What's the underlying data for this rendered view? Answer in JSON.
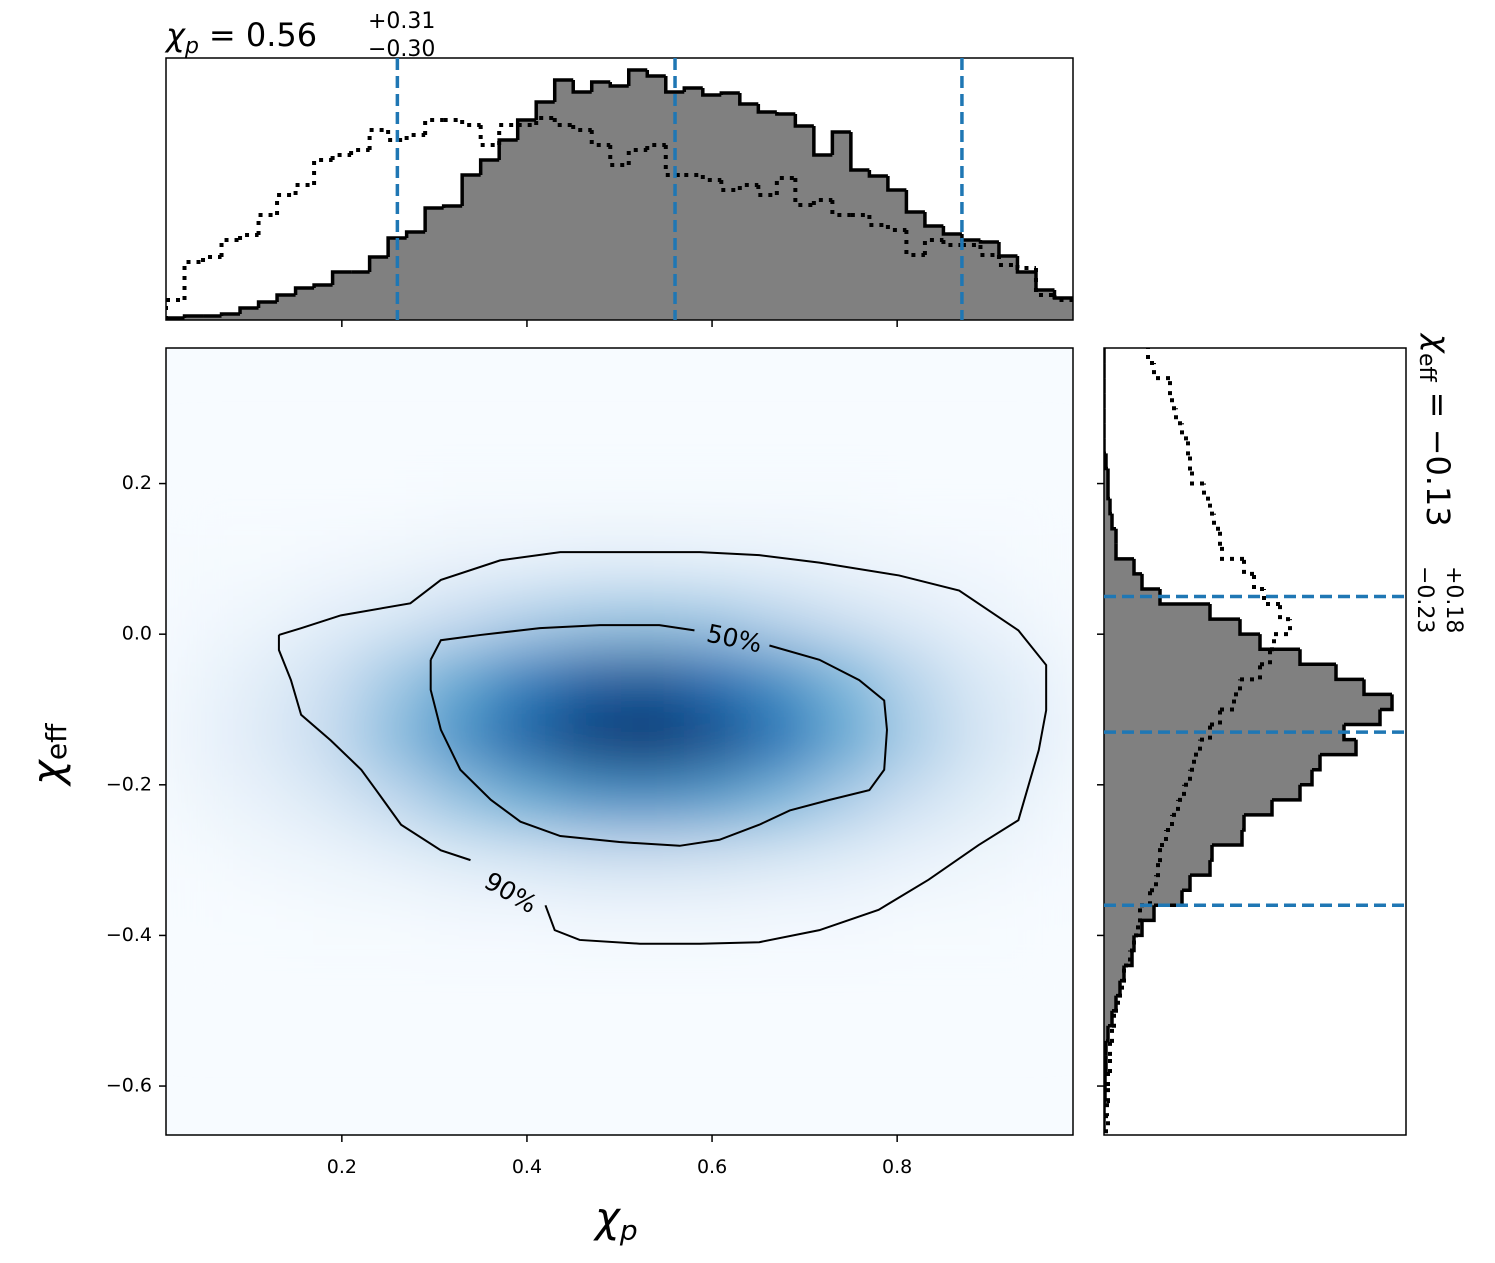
{
  "chart_data": [
    {
      "type": "histogram",
      "title": {
        "symbol": "χ",
        "sub": "p",
        "value": "= 0.56",
        "upper": "+0.31",
        "lower": "−0.30"
      },
      "bins": [
        0.01,
        0.03,
        0.05,
        0.07,
        0.09,
        0.11,
        0.13,
        0.15,
        0.17,
        0.19,
        0.21,
        0.23,
        0.25,
        0.27,
        0.29,
        0.31,
        0.33,
        0.35,
        0.37,
        0.39,
        0.41,
        0.43,
        0.45,
        0.47,
        0.49,
        0.51,
        0.53,
        0.55,
        0.57,
        0.59,
        0.61,
        0.63,
        0.65,
        0.67,
        0.69,
        0.71,
        0.73,
        0.75,
        0.77,
        0.79,
        0.81,
        0.83,
        0.85,
        0.87,
        0.89,
        0.91,
        0.93,
        0.95,
        0.97,
        0.99
      ],
      "series": [
        {
          "style": "filled",
          "color": "#808080",
          "edgecolor": "#000000",
          "values": [
            2,
            4,
            4,
            6,
            12,
            18,
            25,
            32,
            35,
            48,
            48,
            63,
            82,
            88,
            112,
            114,
            145,
            160,
            180,
            200,
            218,
            240,
            228,
            238,
            234,
            250,
            244,
            228,
            232,
            225,
            227,
            216,
            208,
            206,
            194,
            165,
            188,
            150,
            144,
            130,
            108,
            94,
            86,
            80,
            78,
            64,
            48,
            30,
            22
          ]
        },
        {
          "style": "dotted",
          "color": "#000000",
          "values": [
            20,
            58,
            63,
            80,
            85,
            105,
            125,
            135,
            160,
            165,
            170,
            190,
            180,
            185,
            200,
            200,
            195,
            175,
            195,
            195,
            202,
            195,
            190,
            175,
            155,
            170,
            175,
            145,
            145,
            140,
            130,
            135,
            125,
            142,
            115,
            120,
            105,
            105,
            95,
            90,
            65,
            80,
            75,
            75,
            65,
            55,
            52,
            25,
            20
          ]
        }
      ],
      "xlim": [
        0.01,
        0.99
      ],
      "ylim": [
        0,
        262
      ],
      "xticks": [
        0.2,
        0.4,
        0.6,
        0.8
      ],
      "quantiles": [
        0.26,
        0.56,
        0.87
      ],
      "quantile_color": "#1f77b4"
    },
    {
      "type": "heatmap",
      "xlabel": {
        "symbol": "χ",
        "sub": "p"
      },
      "ylabel": {
        "symbol": "χ",
        "sub": "eff"
      },
      "xlim": [
        0.01,
        0.99
      ],
      "ylim": [
        -0.665,
        0.38
      ],
      "xticks": [
        0.2,
        0.4,
        0.6,
        0.8
      ],
      "yticks": [
        0.2,
        {
          "value": 0,
          "label": "0.0"
        },
        {
          "value": -0.2,
          "label": "−0.2"
        },
        {
          "value": -0.4,
          "label": "−0.4"
        },
        {
          "value": -0.6,
          "label": "−0.6"
        }
      ],
      "cmap": [
        "#f7fbff",
        "#c6dbef",
        "#6baed6",
        "#2171b5",
        "#08306b"
      ],
      "x_edges": [
        0.01,
        0.08,
        0.15,
        0.22,
        0.29,
        0.36,
        0.43,
        0.5,
        0.57,
        0.64,
        0.71,
        0.78,
        0.85,
        0.92,
        0.99
      ],
      "y_edges": [
        -0.5,
        -0.42,
        -0.34,
        -0.26,
        -0.18,
        -0.1,
        -0.02,
        0.06,
        0.14,
        0.22
      ],
      "values": [
        [
          0,
          0,
          0,
          0,
          0,
          0,
          0,
          0,
          0,
          0,
          0,
          0,
          0,
          0
        ],
        [
          0,
          0,
          0.01,
          0.01,
          0.02,
          0.02,
          0.03,
          0.03,
          0.03,
          0.02,
          0.02,
          0.01,
          0.01,
          0
        ],
        [
          0.01,
          0.03,
          0.05,
          0.08,
          0.12,
          0.16,
          0.19,
          0.2,
          0.18,
          0.15,
          0.11,
          0.07,
          0.04,
          0.02
        ],
        [
          0.04,
          0.08,
          0.15,
          0.26,
          0.38,
          0.5,
          0.59,
          0.61,
          0.56,
          0.45,
          0.32,
          0.21,
          0.12,
          0.05
        ],
        [
          0.06,
          0.13,
          0.25,
          0.41,
          0.61,
          0.8,
          0.94,
          0.98,
          0.89,
          0.73,
          0.52,
          0.33,
          0.19,
          0.09
        ],
        [
          0.05,
          0.11,
          0.21,
          0.35,
          0.52,
          0.69,
          0.81,
          0.84,
          0.76,
          0.62,
          0.45,
          0.29,
          0.16,
          0.08
        ],
        [
          0.02,
          0.05,
          0.1,
          0.16,
          0.24,
          0.31,
          0.36,
          0.38,
          0.35,
          0.28,
          0.2,
          0.13,
          0.07,
          0.03
        ],
        [
          0.01,
          0.01,
          0.02,
          0.04,
          0.06,
          0.07,
          0.09,
          0.09,
          0.08,
          0.07,
          0.05,
          0.03,
          0.02,
          0.01
        ],
        [
          0,
          0,
          0,
          0,
          0.01,
          0.01,
          0.01,
          0.01,
          0.01,
          0.01,
          0.01,
          0,
          0,
          0
        ]
      ],
      "contours": [
        {
          "label": "90%",
          "x": [
            0.132,
            0.156,
            0.199,
            0.274,
            0.307,
            0.371,
            0.436,
            0.522,
            0.587,
            0.651,
            0.716,
            0.802,
            0.867,
            0.931,
            0.961,
            0.961,
            0.953,
            0.931,
            0.888,
            0.834,
            0.78,
            0.716,
            0.651,
            0.587,
            0.522,
            0.457,
            0.43,
            0.42,
            null,
            0.339,
            0.307,
            0.264,
            0.237,
            0.221,
            0.188,
            0.156,
            0.145,
            0.132,
            0.132
          ],
          "y": [
            -0.001,
            0.008,
            0.025,
            0.041,
            0.072,
            0.098,
            0.109,
            0.109,
            0.109,
            0.105,
            0.095,
            0.078,
            0.058,
            0.005,
            -0.041,
            -0.101,
            -0.154,
            -0.247,
            -0.28,
            -0.326,
            -0.366,
            -0.393,
            -0.409,
            -0.411,
            -0.411,
            -0.406,
            -0.393,
            -0.36,
            null,
            -0.3,
            -0.287,
            -0.253,
            -0.207,
            -0.18,
            -0.141,
            -0.107,
            -0.061,
            -0.021,
            -0.001
          ]
        },
        {
          "label": "50%",
          "x": [
            0.296,
            0.307,
            0.35,
            0.414,
            0.479,
            0.543,
            0.581,
            null,
            0.662,
            0.716,
            0.759,
            0.786,
            0.789,
            0.786,
            0.77,
            0.727,
            0.684,
            0.651,
            0.608,
            0.565,
            0.5,
            0.436,
            0.393,
            0.361,
            0.328,
            0.307,
            0.296,
            0.296
          ],
          "y": [
            -0.034,
            -0.008,
            -0.001,
            0.008,
            0.012,
            0.012,
            0.005,
            null,
            -0.015,
            -0.034,
            -0.061,
            -0.088,
            -0.127,
            -0.18,
            -0.207,
            -0.22,
            -0.234,
            -0.253,
            -0.273,
            -0.281,
            -0.276,
            -0.268,
            -0.249,
            -0.22,
            -0.18,
            -0.127,
            -0.074,
            -0.034
          ]
        }
      ]
    },
    {
      "type": "histogram-horizontal",
      "title": {
        "symbol": "χ",
        "sub": "eff",
        "value": "= −0.13",
        "upper": "+0.18",
        "lower": "−0.23"
      },
      "bins": [
        -0.66,
        -0.64,
        -0.62,
        -0.6,
        -0.58,
        -0.56,
        -0.54,
        -0.52,
        -0.5,
        -0.48,
        -0.46,
        -0.44,
        -0.42,
        -0.4,
        -0.38,
        -0.36,
        -0.34,
        -0.32,
        -0.3,
        -0.28,
        -0.26,
        -0.24,
        -0.22,
        -0.2,
        -0.18,
        -0.16,
        -0.14,
        -0.12,
        -0.1,
        -0.08,
        -0.06,
        -0.04,
        -0.02,
        0,
        0.02,
        0.04,
        0.06,
        0.08,
        0.1,
        0.12,
        0.14,
        0.16,
        0.18,
        0.2,
        0.22,
        0.24,
        0.26,
        0.28,
        0.3,
        0.32,
        0.34,
        0.36,
        0.38
      ],
      "series": [
        {
          "style": "filled",
          "color": "#808080",
          "edgecolor": "#000000",
          "values": [
            0,
            0,
            1,
            1,
            2,
            2,
            4,
            8,
            12,
            16,
            20,
            28,
            30,
            38,
            50,
            78,
            86,
            106,
            108,
            138,
            140,
            168,
            196,
            208,
            216,
            252,
            240,
            276,
            288,
            260,
            232,
            196,
            156,
            136,
            106,
            56,
            38,
            30,
            12,
            12,
            8,
            6,
            4,
            4,
            2,
            0,
            0,
            0,
            0,
            0,
            0,
            0
          ]
        },
        {
          "style": "dotted",
          "color": "#000000",
          "values": [
            4,
            3,
            4,
            4,
            6,
            6,
            8,
            10,
            14,
            18,
            20,
            26,
            30,
            34,
            36,
            46,
            52,
            54,
            56,
            62,
            68,
            74,
            80,
            86,
            90,
            96,
            106,
            116,
            130,
            136,
            156,
            166,
            170,
            186,
            176,
            160,
            150,
            140,
            118,
            116,
            110,
            106,
            100,
            88,
            86,
            84,
            78,
            72,
            68,
            66,
            50,
            44
          ]
        }
      ],
      "xlim": [
        0,
        302
      ],
      "ylim": [
        -0.665,
        0.38
      ],
      "yticks": [
        0.2,
        0,
        -0.2,
        -0.4,
        -0.6
      ],
      "quantiles": [
        -0.36,
        -0.13,
        0.05
      ],
      "quantile_color": "#1f77b4"
    }
  ]
}
